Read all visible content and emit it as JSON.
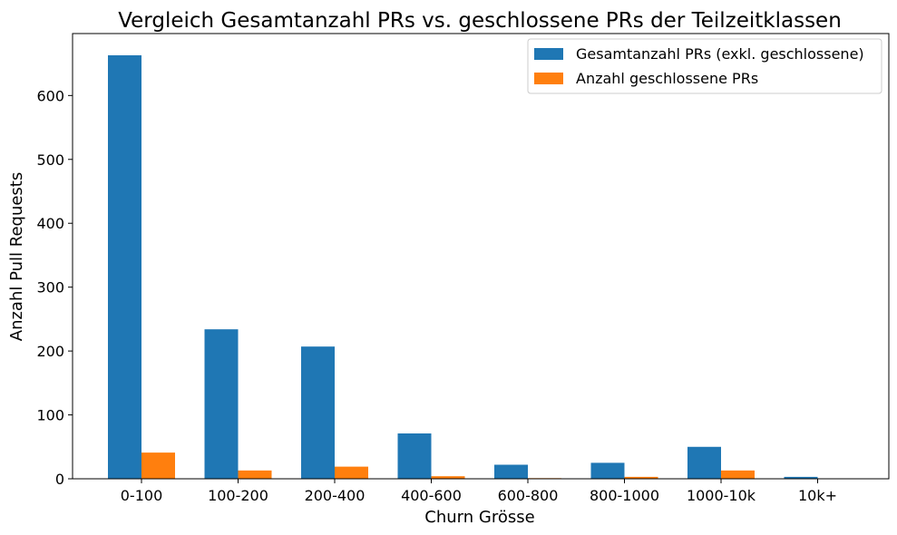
{
  "chart_data": {
    "type": "bar",
    "title": "Vergleich Gesamtanzahl PRs vs. geschlossene PRs der Teilzeitklassen",
    "xlabel": "Churn Grösse",
    "ylabel": "Anzahl Pull Requests",
    "categories": [
      "0-100",
      "100-200",
      "200-400",
      "400-600",
      "600-800",
      "800-1000",
      "1000-10k",
      "10k+"
    ],
    "series": [
      {
        "name": "Gesamtanzahl PRs (exkl. geschlossene)",
        "color": "#1f77b4",
        "values": [
          663,
          234,
          207,
          71,
          22,
          25,
          50,
          3
        ]
      },
      {
        "name": "Anzahl geschlossene PRs",
        "color": "#ff7f0e",
        "values": [
          41,
          13,
          19,
          4,
          1,
          3,
          13,
          0
        ]
      }
    ],
    "ylim": [
      0,
      697
    ],
    "yticks": [
      0,
      100,
      200,
      300,
      400,
      500,
      600
    ],
    "grid": false,
    "legend_position": "top-right"
  }
}
